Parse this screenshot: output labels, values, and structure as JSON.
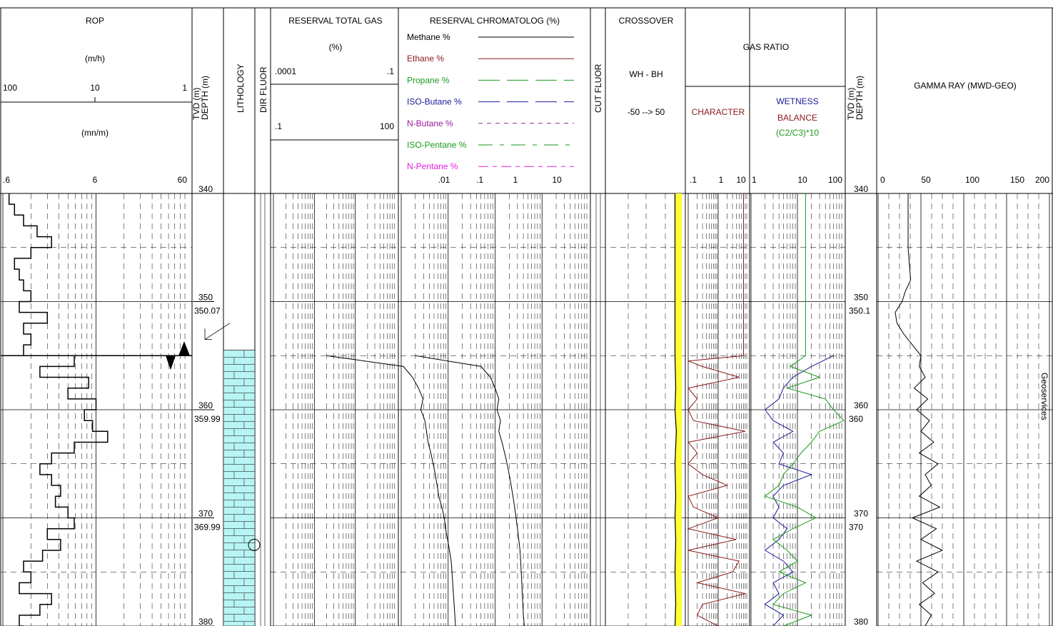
{
  "tracks": {
    "rop": {
      "title": "ROP",
      "unit_top": "(m/h)",
      "unit_bottom": "(mn/m)",
      "scale_top": [
        "100",
        "10",
        "1"
      ],
      "scale_bottom": [
        ".6",
        "6",
        "60"
      ]
    },
    "depth_left": {
      "title": "TVD (m)",
      "title2": "DEPTH (m)"
    },
    "lithology": {
      "title": "LITHOLOGY"
    },
    "dir_fluor": {
      "title": "DIR FLUOR"
    },
    "total_gas": {
      "title": "RESERVAL TOTAL GAS",
      "unit": "(%)",
      "scale_top": [
        ".0001",
        ".1"
      ],
      "scale_bottom": [
        ".1",
        "100"
      ]
    },
    "chromatolog": {
      "title": "RESERVAL CHROMATOLOG (%)",
      "legend": [
        {
          "label": "Methane %",
          "color": "#000000",
          "dash": ""
        },
        {
          "label": "Ethane %",
          "color": "#8b1a1a",
          "dash": ""
        },
        {
          "label": "Propane %",
          "color": "#1a9a1a",
          "dash": "30,10"
        },
        {
          "label": "ISO-Butane %",
          "color": "#1a1a9a",
          "dash": "30,10"
        },
        {
          "label": "N-Butane %",
          "color": "#9a1a9a",
          "dash": "6,6"
        },
        {
          "label": "ISO-Pentane %",
          "color": "#1a9a1a",
          "dash": "20,10,6,10"
        },
        {
          "label": "N-Pentane %",
          "color": "#e020e0",
          "dash": "14,6,6,6"
        }
      ],
      "scale": [
        ".01",
        ".1",
        "1",
        "10"
      ]
    },
    "cut_fluor": {
      "title": "CUT FLUOR"
    },
    "crossover": {
      "title": "CROSSOVER",
      "sub": "WH - BH",
      "range": "-50 --> 50"
    },
    "gas_ratio": {
      "title": "GAS RATIO",
      "character": "CHARACTER",
      "wetness": "WETNESS",
      "balance": "BALANCE",
      "balance_expr": "(C2/C3)*10",
      "scale_char": [
        ".1",
        "1",
        "10"
      ],
      "scale_wet": [
        "1",
        "10",
        "100"
      ]
    },
    "depth_right": {
      "title": "TVD (m)",
      "title2": "DEPTH (m)"
    },
    "gamma": {
      "title": "GAMMA RAY (MWD-GEO)",
      "scale": [
        "0",
        "50",
        "100",
        "150",
        "200"
      ]
    },
    "side_text": "Geoservices"
  },
  "chart_data": {
    "type": "line",
    "depth_axis": {
      "min": 340,
      "max": 380,
      "major": 10
    },
    "depth_labels": [
      "340",
      "350",
      "360",
      "370",
      "380"
    ],
    "md_labels_left": [
      "350.07",
      "359.99",
      "369.99"
    ],
    "md_labels_right": [
      "350.1",
      "360",
      "370"
    ],
    "rop_mn_per_m": {
      "depth": [
        340,
        341,
        342,
        343,
        344,
        345,
        346,
        347,
        348,
        349,
        350,
        351,
        352,
        353,
        354,
        355,
        356,
        357,
        358,
        359,
        360,
        361,
        362,
        363,
        364,
        365,
        366,
        367,
        368,
        369,
        370,
        371,
        372,
        373,
        374,
        375,
        376,
        377,
        378,
        379,
        380
      ],
      "values": [
        0.7,
        0.8,
        1.0,
        1.4,
        2.0,
        1.2,
        0.8,
        0.9,
        1.0,
        1.2,
        0.9,
        1.8,
        1.0,
        1.2,
        1.0,
        3.5,
        1.5,
        5.0,
        3.0,
        6.0,
        4.5,
        5.5,
        8.0,
        3.5,
        2.0,
        1.5,
        2.0,
        2.5,
        2.2,
        3.0,
        3.5,
        1.8,
        2.5,
        1.6,
        1.0,
        1.2,
        0.9,
        2.0,
        1.5,
        0.9,
        1.0
      ]
    },
    "total_gas_pct": {
      "depth": [
        355,
        356,
        357,
        358,
        359,
        360,
        361,
        362,
        363,
        364,
        365,
        366,
        367,
        368,
        369,
        370,
        371,
        372,
        373,
        374,
        375,
        376,
        377,
        378,
        379,
        380
      ],
      "values": [
        0.002,
        0.15,
        0.25,
        0.35,
        0.45,
        0.4,
        0.5,
        0.55,
        0.6,
        0.7,
        0.8,
        0.9,
        1.0,
        1.1,
        1.3,
        1.5,
        1.6,
        1.8,
        2.0,
        2.2,
        2.3,
        2.4,
        2.5,
        2.6,
        2.7,
        2.8
      ]
    },
    "methane_pct": {
      "depth": [
        355,
        356,
        357,
        358,
        359,
        360,
        361,
        362,
        363,
        364,
        365,
        366,
        367,
        368,
        369,
        370,
        371,
        372,
        373,
        374,
        375,
        376,
        377,
        378,
        379,
        380
      ],
      "values": [
        0.002,
        0.05,
        0.08,
        0.1,
        0.12,
        0.11,
        0.13,
        0.12,
        0.14,
        0.16,
        0.18,
        0.2,
        0.22,
        0.24,
        0.26,
        0.28,
        0.3,
        0.32,
        0.34,
        0.35,
        0.36,
        0.37,
        0.38,
        0.39,
        0.4,
        0.42
      ]
    },
    "crossover_wh_bh": {
      "depth": [
        340,
        345,
        350,
        355,
        358,
        360,
        362,
        365,
        368,
        370,
        372,
        375,
        378,
        380
      ],
      "values": [
        40,
        40,
        40,
        40,
        41,
        40,
        42,
        40,
        41,
        40,
        41,
        40,
        41,
        40
      ]
    },
    "character": {
      "depth": [
        340,
        355,
        355.5,
        356,
        357,
        358,
        359,
        360,
        361,
        362,
        363,
        364,
        365,
        366,
        367,
        368,
        369,
        370,
        371,
        372,
        373,
        374,
        375,
        376,
        377,
        378,
        379,
        380
      ],
      "values": [
        7,
        7,
        0.1,
        0.3,
        5,
        0.1,
        0.2,
        0.1,
        0.15,
        8,
        0.1,
        0.2,
        0.1,
        0.3,
        2,
        0.1,
        0.15,
        1,
        0.1,
        4,
        0.1,
        5,
        3,
        0.2,
        8,
        0.3,
        0.2,
        1
      ]
    },
    "wetness": {
      "depth": [
        355,
        356,
        357,
        358,
        359,
        360,
        361,
        362,
        363,
        364,
        365,
        366,
        367,
        368,
        369,
        370,
        371,
        372,
        373,
        374,
        375,
        376,
        377,
        378,
        379,
        380
      ],
      "values": [
        60,
        20,
        8,
        5,
        4,
        2,
        3,
        8,
        3,
        5,
        4,
        20,
        5,
        3,
        4,
        3,
        6,
        4,
        2,
        5,
        8,
        3,
        4,
        2,
        5,
        3
      ]
    },
    "balance": {
      "depth": [
        340,
        355,
        356,
        357,
        358,
        359,
        360,
        361,
        362,
        363,
        364,
        365,
        366,
        367,
        368,
        369,
        370,
        371,
        372,
        373,
        374,
        375,
        376,
        377,
        378,
        379,
        380
      ],
      "values": [
        15,
        15,
        7,
        30,
        6,
        40,
        60,
        100,
        30,
        20,
        12,
        8,
        5,
        4,
        2,
        10,
        25,
        8,
        3,
        6,
        10,
        4,
        15,
        5,
        3,
        20,
        5
      ]
    },
    "gamma_api": {
      "depth": [
        340,
        345,
        348,
        349,
        350,
        351,
        352,
        353,
        354,
        355,
        356,
        357,
        358,
        359,
        360,
        361,
        362,
        363,
        364,
        365,
        366,
        367,
        368,
        369,
        370,
        371,
        372,
        373,
        374,
        375,
        376,
        377,
        378,
        379,
        380
      ],
      "values": [
        35,
        35,
        38,
        32,
        28,
        20,
        22,
        30,
        40,
        50,
        48,
        55,
        42,
        58,
        45,
        60,
        50,
        65,
        48,
        70,
        55,
        62,
        48,
        72,
        40,
        68,
        50,
        75,
        45,
        70,
        52,
        66,
        48,
        62,
        55
      ]
    }
  },
  "colors": {
    "lithology": "#b8f4f4",
    "crossover": "#ffff33",
    "methane": "#000000",
    "ethane": "#8b1a1a",
    "propane": "#1a9a1a",
    "isobutane": "#1a1a9a",
    "balance": "#1a9a1a",
    "wetness": "#1a1a9a",
    "character": "#8b1a1a"
  }
}
